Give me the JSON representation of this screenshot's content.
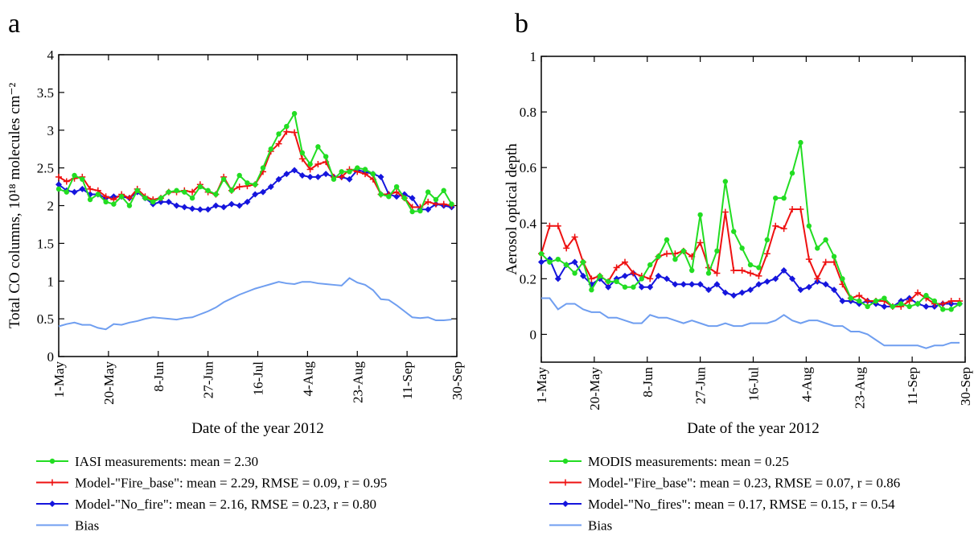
{
  "chart_data": [
    {
      "type": "line",
      "panel_label": "a",
      "xlabel": "Date of the year 2012",
      "ylabel": "Total CO columns, 10¹⁸ molecules cm⁻²",
      "x": [
        0,
        3,
        6,
        9,
        12,
        15,
        18,
        21,
        24,
        27,
        30,
        33,
        36,
        39,
        42,
        45,
        48,
        51,
        54,
        57,
        60,
        63,
        66,
        69,
        72,
        75,
        78,
        81,
        84,
        87,
        90,
        93,
        96,
        99,
        102,
        105,
        108,
        111,
        114,
        117,
        120,
        123,
        126,
        129,
        132,
        135,
        138,
        141,
        144,
        147,
        150
      ],
      "xlim": [
        0,
        152
      ],
      "xticks": [
        {
          "value": 0,
          "label": "1-May"
        },
        {
          "value": 19,
          "label": "20-May"
        },
        {
          "value": 38,
          "label": "8-Jun"
        },
        {
          "value": 57,
          "label": "27-Jun"
        },
        {
          "value": 76,
          "label": "16-Jul"
        },
        {
          "value": 95,
          "label": "4-Aug"
        },
        {
          "value": 114,
          "label": "23-Aug"
        },
        {
          "value": 133,
          "label": "11-Sep"
        },
        {
          "value": 152,
          "label": "30-Sep"
        }
      ],
      "ylim": [
        0,
        4
      ],
      "yticks": [
        0,
        0.5,
        1,
        1.5,
        2,
        2.5,
        3,
        3.5,
        4
      ],
      "series": [
        {
          "name": "IASI measurements: mean = 2.30",
          "color": "#22dd22",
          "marker": "circle",
          "values": [
            2.22,
            2.18,
            2.4,
            2.35,
            2.08,
            2.15,
            2.05,
            2.02,
            2.12,
            2.0,
            2.2,
            2.1,
            2.05,
            2.1,
            2.18,
            2.2,
            2.18,
            2.1,
            2.25,
            2.2,
            2.15,
            2.35,
            2.2,
            2.4,
            2.3,
            2.28,
            2.5,
            2.75,
            2.95,
            3.05,
            3.22,
            2.7,
            2.55,
            2.78,
            2.65,
            2.35,
            2.45,
            2.45,
            2.5,
            2.48,
            2.42,
            2.15,
            2.12,
            2.25,
            2.1,
            1.92,
            1.93,
            2.18,
            2.08,
            2.2,
            2.02
          ]
        },
        {
          "name": "Model-\"Fire_base\": mean = 2.29, RMSE = 0.09, r = 0.95",
          "color": "#ee1111",
          "marker": "plus",
          "values": [
            2.38,
            2.32,
            2.36,
            2.38,
            2.22,
            2.2,
            2.12,
            2.08,
            2.15,
            2.1,
            2.22,
            2.12,
            2.08,
            2.1,
            2.18,
            2.18,
            2.2,
            2.18,
            2.28,
            2.18,
            2.15,
            2.38,
            2.2,
            2.25,
            2.26,
            2.28,
            2.45,
            2.72,
            2.82,
            2.98,
            2.97,
            2.62,
            2.48,
            2.55,
            2.58,
            2.38,
            2.38,
            2.48,
            2.45,
            2.42,
            2.35,
            2.15,
            2.15,
            2.18,
            2.1,
            1.98,
            1.98,
            2.05,
            2.02,
            2.02,
            2.0
          ]
        },
        {
          "name": "Model-\"No_fire\": mean = 2.16, RMSE = 0.23, r = 0.80",
          "color": "#1515dd",
          "marker": "diamond",
          "values": [
            2.28,
            2.2,
            2.18,
            2.22,
            2.15,
            2.15,
            2.1,
            2.12,
            2.12,
            2.1,
            2.18,
            2.1,
            2.02,
            2.05,
            2.05,
            2.0,
            1.98,
            1.96,
            1.95,
            1.95,
            2.0,
            1.98,
            2.02,
            2.0,
            2.05,
            2.15,
            2.18,
            2.25,
            2.35,
            2.42,
            2.47,
            2.4,
            2.38,
            2.38,
            2.42,
            2.38,
            2.38,
            2.35,
            2.47,
            2.45,
            2.42,
            2.38,
            2.15,
            2.12,
            2.15,
            2.1,
            1.95,
            1.95,
            2.02,
            2.0,
            1.98
          ]
        },
        {
          "name": "Bias",
          "color": "#6f9ef0",
          "marker": "none",
          "values": [
            0.4,
            0.43,
            0.45,
            0.42,
            0.42,
            0.38,
            0.36,
            0.43,
            0.42,
            0.45,
            0.47,
            0.5,
            0.52,
            0.51,
            0.5,
            0.49,
            0.51,
            0.52,
            0.56,
            0.6,
            0.65,
            0.72,
            0.77,
            0.82,
            0.86,
            0.9,
            0.93,
            0.96,
            0.99,
            0.97,
            0.96,
            0.99,
            0.99,
            0.97,
            0.96,
            0.95,
            0.94,
            1.04,
            0.98,
            0.95,
            0.88,
            0.76,
            0.75,
            0.68,
            0.6,
            0.52,
            0.51,
            0.52,
            0.48,
            0.48,
            0.49
          ]
        }
      ]
    },
    {
      "type": "line",
      "panel_label": "b",
      "xlabel": "Date of the year 2012",
      "ylabel": "Aerosol optical depth",
      "x": [
        0,
        3,
        6,
        9,
        12,
        15,
        18,
        21,
        24,
        27,
        30,
        33,
        36,
        39,
        42,
        45,
        48,
        51,
        54,
        57,
        60,
        63,
        66,
        69,
        72,
        75,
        78,
        81,
        84,
        87,
        90,
        93,
        96,
        99,
        102,
        105,
        108,
        111,
        114,
        117,
        120,
        123,
        126,
        129,
        132,
        135,
        138,
        141,
        144,
        147,
        150
      ],
      "xlim": [
        0,
        152
      ],
      "xticks": [
        {
          "value": 0,
          "label": "1-May"
        },
        {
          "value": 19,
          "label": "20-May"
        },
        {
          "value": 38,
          "label": "8-Jun"
        },
        {
          "value": 57,
          "label": "27-Jun"
        },
        {
          "value": 76,
          "label": "16-Jul"
        },
        {
          "value": 95,
          "label": "4-Aug"
        },
        {
          "value": 114,
          "label": "23-Aug"
        },
        {
          "value": 133,
          "label": "11-Sep"
        },
        {
          "value": 152,
          "label": "30-Sep"
        }
      ],
      "ylim": [
        -0.1,
        1
      ],
      "yticks": [
        0,
        0.2,
        0.4,
        0.6,
        0.8,
        1
      ],
      "series": [
        {
          "name": "MODIS measurements: mean = 0.25",
          "color": "#22dd22",
          "marker": "circle",
          "values": [
            0.29,
            0.26,
            0.27,
            0.25,
            0.22,
            0.26,
            0.16,
            0.21,
            0.19,
            0.19,
            0.17,
            0.17,
            0.2,
            0.25,
            0.28,
            0.34,
            0.27,
            0.3,
            0.23,
            0.43,
            0.22,
            0.3,
            0.55,
            0.37,
            0.31,
            0.25,
            0.24,
            0.34,
            0.49,
            0.49,
            0.58,
            0.69,
            0.39,
            0.31,
            0.34,
            0.28,
            0.2,
            0.13,
            0.12,
            0.1,
            0.12,
            0.13,
            0.1,
            0.11,
            0.1,
            0.11,
            0.14,
            0.12,
            0.09,
            0.09,
            0.11
          ]
        },
        {
          "name": "Model-\"Fire_base\": mean = 0.23, RMSE = 0.07, r  = 0.86",
          "color": "#ee1111",
          "marker": "plus",
          "values": [
            0.29,
            0.39,
            0.39,
            0.31,
            0.35,
            0.26,
            0.2,
            0.21,
            0.19,
            0.24,
            0.26,
            0.22,
            0.21,
            0.2,
            0.28,
            0.29,
            0.29,
            0.3,
            0.28,
            0.33,
            0.24,
            0.22,
            0.44,
            0.23,
            0.23,
            0.22,
            0.21,
            0.29,
            0.39,
            0.38,
            0.45,
            0.45,
            0.27,
            0.2,
            0.26,
            0.26,
            0.18,
            0.13,
            0.14,
            0.12,
            0.12,
            0.12,
            0.1,
            0.1,
            0.12,
            0.15,
            0.13,
            0.11,
            0.11,
            0.12,
            0.12
          ]
        },
        {
          "name": "Model-\"No_fires\": mean = 0.17, RMSE = 0.15, r = 0.54",
          "color": "#1515dd",
          "marker": "diamond",
          "values": [
            0.26,
            0.27,
            0.2,
            0.25,
            0.26,
            0.21,
            0.18,
            0.2,
            0.17,
            0.2,
            0.21,
            0.22,
            0.17,
            0.17,
            0.21,
            0.2,
            0.18,
            0.18,
            0.18,
            0.18,
            0.16,
            0.18,
            0.15,
            0.14,
            0.15,
            0.16,
            0.18,
            0.19,
            0.2,
            0.23,
            0.2,
            0.16,
            0.17,
            0.19,
            0.18,
            0.16,
            0.12,
            0.12,
            0.11,
            0.12,
            0.11,
            0.1,
            0.1,
            0.12,
            0.13,
            0.11,
            0.1,
            0.1,
            0.11,
            0.11,
            0.11
          ]
        },
        {
          "name": "Bias",
          "color": "#6f9ef0",
          "marker": "none",
          "values": [
            0.13,
            0.13,
            0.09,
            0.11,
            0.11,
            0.09,
            0.08,
            0.08,
            0.06,
            0.06,
            0.05,
            0.04,
            0.04,
            0.07,
            0.06,
            0.06,
            0.05,
            0.04,
            0.05,
            0.04,
            0.03,
            0.03,
            0.04,
            0.03,
            0.03,
            0.04,
            0.04,
            0.04,
            0.05,
            0.07,
            0.05,
            0.04,
            0.05,
            0.05,
            0.04,
            0.03,
            0.03,
            0.01,
            0.01,
            0.0,
            -0.02,
            -0.04,
            -0.04,
            -0.04,
            -0.04,
            -0.04,
            -0.05,
            -0.04,
            -0.04,
            -0.03,
            -0.03
          ]
        }
      ]
    }
  ]
}
